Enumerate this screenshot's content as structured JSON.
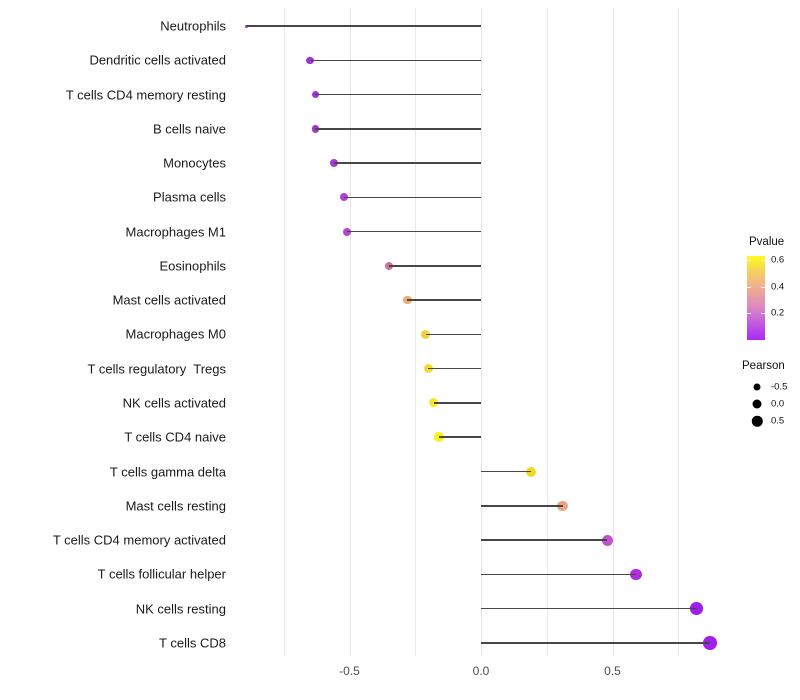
{
  "chart_data": {
    "type": "lollipop",
    "title": "",
    "xlabel": "",
    "ylabel": "",
    "orientation": "horizontal",
    "baseline_x": 0.0,
    "x_axis": {
      "tick_labels": [
        "-0.5",
        "0.0",
        "0.5"
      ],
      "tick_values": [
        -0.5,
        0.0,
        0.5
      ],
      "minor_gridline_values": [
        -0.75,
        -0.25,
        0.25,
        0.75
      ],
      "xlim": [
        -0.95,
        0.95
      ],
      "grid": "vertical light-gray lines on white, no axis line"
    },
    "points": [
      {
        "label": "Neutrophils",
        "pearson": -0.89,
        "color": "#9d30d8",
        "size": 3
      },
      {
        "label": "Dendritic cells activated",
        "pearson": -0.65,
        "color": "#a232d6",
        "size": 7.5
      },
      {
        "label": "T cells CD4 memory resting",
        "pearson": -0.63,
        "color": "#a232d6",
        "size": 7.5
      },
      {
        "label": "B cells naive",
        "pearson": -0.63,
        "color": "#a434d6",
        "size": 7.5
      },
      {
        "label": "Monocytes",
        "pearson": -0.56,
        "color": "#a838da",
        "size": 8
      },
      {
        "label": "Plasma cells",
        "pearson": -0.52,
        "color": "#b23fd6",
        "size": 8
      },
      {
        "label": "Macrophages M1",
        "pearson": -0.51,
        "color": "#b844d4",
        "size": 8
      },
      {
        "label": "Eosinophils",
        "pearson": -0.35,
        "color": "#d0729c",
        "size": 8.5
      },
      {
        "label": "Mast cells activated",
        "pearson": -0.28,
        "color": "#ecac74",
        "size": 8.5
      },
      {
        "label": "Macrophages M0",
        "pearson": -0.21,
        "color": "#efd23e",
        "size": 9
      },
      {
        "label": "T cells regulatory  Tregs",
        "pearson": -0.2,
        "color": "#f3dc32",
        "size": 9
      },
      {
        "label": "NK cells activated",
        "pearson": -0.18,
        "color": "#f7e72a",
        "size": 9
      },
      {
        "label": "T cells CD4 naive",
        "pearson": -0.16,
        "color": "#fbf215",
        "size": 9.5
      },
      {
        "label": "T cells gamma delta",
        "pearson": 0.19,
        "color": "#efda26",
        "size": 10
      },
      {
        "label": "Mast cells resting",
        "pearson": 0.31,
        "color": "#eca285",
        "size": 10.5
      },
      {
        "label": "T cells CD4 memory activated",
        "pearson": 0.48,
        "color": "#c253ce",
        "size": 11
      },
      {
        "label": "T cells follicular helper",
        "pearson": 0.59,
        "color": "#ae2fdc",
        "size": 11.5
      },
      {
        "label": "NK cells resting",
        "pearson": 0.82,
        "color": "#9c20e8",
        "size": 12.5
      },
      {
        "label": "T cells CD8",
        "pearson": 0.87,
        "color": "#a121ec",
        "size": 13.5
      }
    ],
    "legend_pvalue": {
      "title": "Pvalue",
      "tick_labels": [
        "0.6",
        "0.4",
        "0.2"
      ],
      "tick_values": [
        0.6,
        0.4,
        0.2
      ],
      "bar_range": [
        0.0,
        0.63
      ],
      "gradient_low_color": "#ac29f5",
      "gradient_mid_color": "#e89ca6",
      "gradient_high_color": "#fcf827",
      "position": "right"
    },
    "legend_pearson": {
      "title": "Pearson",
      "entries": [
        {
          "label": "-0.5",
          "diameter": 7
        },
        {
          "label": "0.0",
          "diameter": 9
        },
        {
          "label": "0.5",
          "diameter": 10.5
        }
      ],
      "dot_color": "#000000",
      "position": "right"
    },
    "segment_color": "#474747",
    "background_color": "#ffffff"
  }
}
